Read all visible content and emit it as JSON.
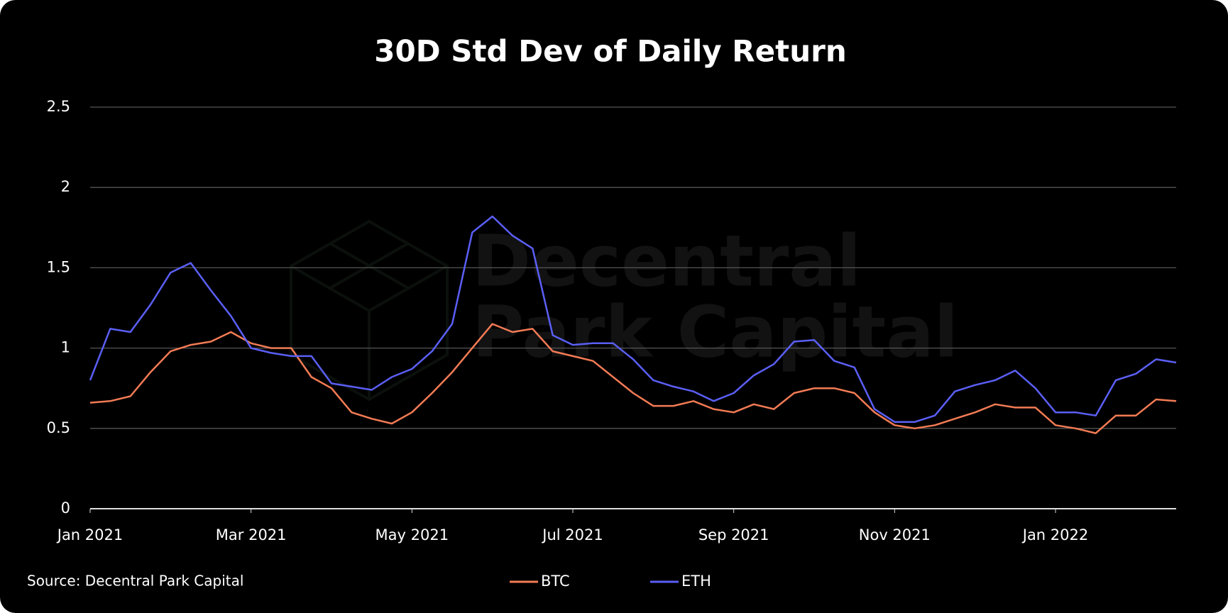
{
  "chart_data": {
    "type": "line",
    "title": "30D Std Dev of Daily Return",
    "watermark": "Decentral Park Capital",
    "source": "Source: Decentral Park Capital",
    "x": [
      0,
      0.25,
      0.5,
      0.75,
      1,
      1.25,
      1.5,
      1.75,
      2,
      2.25,
      2.5,
      2.75,
      3,
      3.25,
      3.5,
      3.75,
      4,
      4.25,
      4.5,
      4.75,
      5,
      5.25,
      5.5,
      5.75,
      6,
      6.25,
      6.5,
      6.75,
      7,
      7.25,
      7.5,
      7.75,
      8,
      8.25,
      8.5,
      8.75,
      9,
      9.25,
      9.5,
      9.75,
      10,
      10.25,
      10.5,
      10.75,
      11,
      11.25,
      11.5,
      11.75,
      12,
      12.25,
      12.5,
      12.75,
      13,
      13.25,
      13.5
    ],
    "series": [
      {
        "name": "BTC",
        "color": "#f27b55",
        "values": [
          0.66,
          0.67,
          0.7,
          0.85,
          0.98,
          1.02,
          1.04,
          1.1,
          1.03,
          1.0,
          1.0,
          0.82,
          0.75,
          0.6,
          0.56,
          0.53,
          0.6,
          0.72,
          0.85,
          1.0,
          1.15,
          1.1,
          1.12,
          0.98,
          0.95,
          0.92,
          0.82,
          0.72,
          0.64,
          0.64,
          0.67,
          0.62,
          0.6,
          0.65,
          0.62,
          0.72,
          0.75,
          0.75,
          0.72,
          0.6,
          0.52,
          0.5,
          0.52,
          0.56,
          0.6,
          0.65,
          0.63,
          0.63,
          0.52,
          0.5,
          0.47,
          0.58,
          0.58,
          0.68,
          0.67
        ]
      },
      {
        "name": "ETH",
        "color": "#5b5ff5",
        "values": [
          0.8,
          1.12,
          1.1,
          1.27,
          1.47,
          1.53,
          1.36,
          1.2,
          1.0,
          0.97,
          0.95,
          0.95,
          0.78,
          0.76,
          0.74,
          0.82,
          0.87,
          0.98,
          1.15,
          1.72,
          1.82,
          1.7,
          1.62,
          1.08,
          1.02,
          1.03,
          1.03,
          0.93,
          0.8,
          0.76,
          0.73,
          0.67,
          0.72,
          0.83,
          0.9,
          1.04,
          1.05,
          0.92,
          0.88,
          0.62,
          0.54,
          0.54,
          0.58,
          0.73,
          0.77,
          0.8,
          0.86,
          0.75,
          0.6,
          0.6,
          0.58,
          0.8,
          0.84,
          0.93,
          0.91
        ]
      }
    ],
    "xlim": [
      0,
      13.5
    ],
    "xticks": [
      {
        "value": 0,
        "label": "Jan 2021"
      },
      {
        "value": 2,
        "label": "Mar 2021"
      },
      {
        "value": 4,
        "label": "May 2021"
      },
      {
        "value": 6,
        "label": "Jul 2021"
      },
      {
        "value": 8,
        "label": "Sep 2021"
      },
      {
        "value": 10,
        "label": "Nov 2021"
      },
      {
        "value": 12,
        "label": "Jan 2022"
      }
    ],
    "ylim": [
      0,
      2.5
    ],
    "yticks": [
      0,
      0.5,
      1,
      1.5,
      2,
      2.5
    ],
    "grid": true,
    "legend": "bottom"
  }
}
